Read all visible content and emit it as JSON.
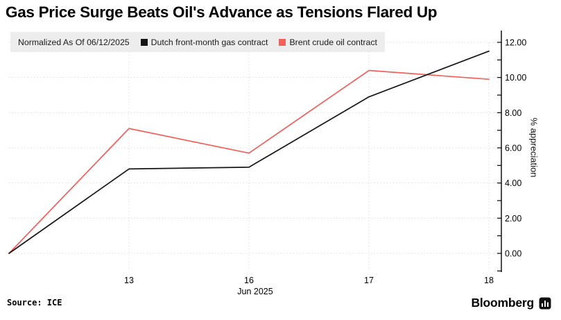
{
  "header": {
    "title": "Gas Price Surge Beats Oil's Advance as Tensions Flared Up"
  },
  "legend": {
    "normalized_label": "Normalized As Of 06/12/2025",
    "items": [
      {
        "label": "Dutch front-month gas contract",
        "color": "#161616"
      },
      {
        "label": "Brent crude oil contract",
        "color": "#f0605c"
      }
    ]
  },
  "footer": {
    "source": "Source: ICE",
    "brand": "Bloomberg"
  },
  "colors": {
    "background": "#ffffff",
    "legend_bg": "#ededed",
    "grid": "#dcdcdc",
    "axis": "#000000",
    "gas_line": "#161616",
    "oil_line": "#f0605c"
  },
  "chart_data": {
    "type": "line",
    "title": "Gas Price Surge Beats Oil's Advance as Tensions Flared Up",
    "x": [
      "Jun 12",
      "Jun 13",
      "Jun 16",
      "Jun 17",
      "Jun 18"
    ],
    "x_ticks": [
      {
        "index": 1,
        "label": "13"
      },
      {
        "index": 2,
        "label": "16"
      },
      {
        "index": 3,
        "label": "17"
      },
      {
        "index": 4,
        "label": "18"
      }
    ],
    "x_axis_label": "Jun 2025",
    "ylabel": "% appreciation",
    "ylim": [
      0,
      12
    ],
    "y_ticks": [
      {
        "value": 0,
        "label": "0.00"
      },
      {
        "value": 2,
        "label": "2.00"
      },
      {
        "value": 4,
        "label": "4.00"
      },
      {
        "value": 6,
        "label": "6.00"
      },
      {
        "value": 8,
        "label": "8.00"
      },
      {
        "value": 10,
        "label": "10.00"
      },
      {
        "value": 12,
        "label": "12.00"
      }
    ],
    "y_minor_ticks": [
      -1,
      1,
      3,
      5,
      7,
      9,
      11
    ],
    "grid": "dashed",
    "legend_position": "top",
    "y_axis_side": "right",
    "series": [
      {
        "name": "Dutch front-month gas contract",
        "color": "#161616",
        "values": [
          0.0,
          4.8,
          4.9,
          8.9,
          11.5
        ]
      },
      {
        "name": "Brent crude oil contract",
        "color": "#f0605c",
        "values": [
          0.0,
          7.1,
          5.7,
          10.4,
          9.9
        ]
      }
    ]
  }
}
